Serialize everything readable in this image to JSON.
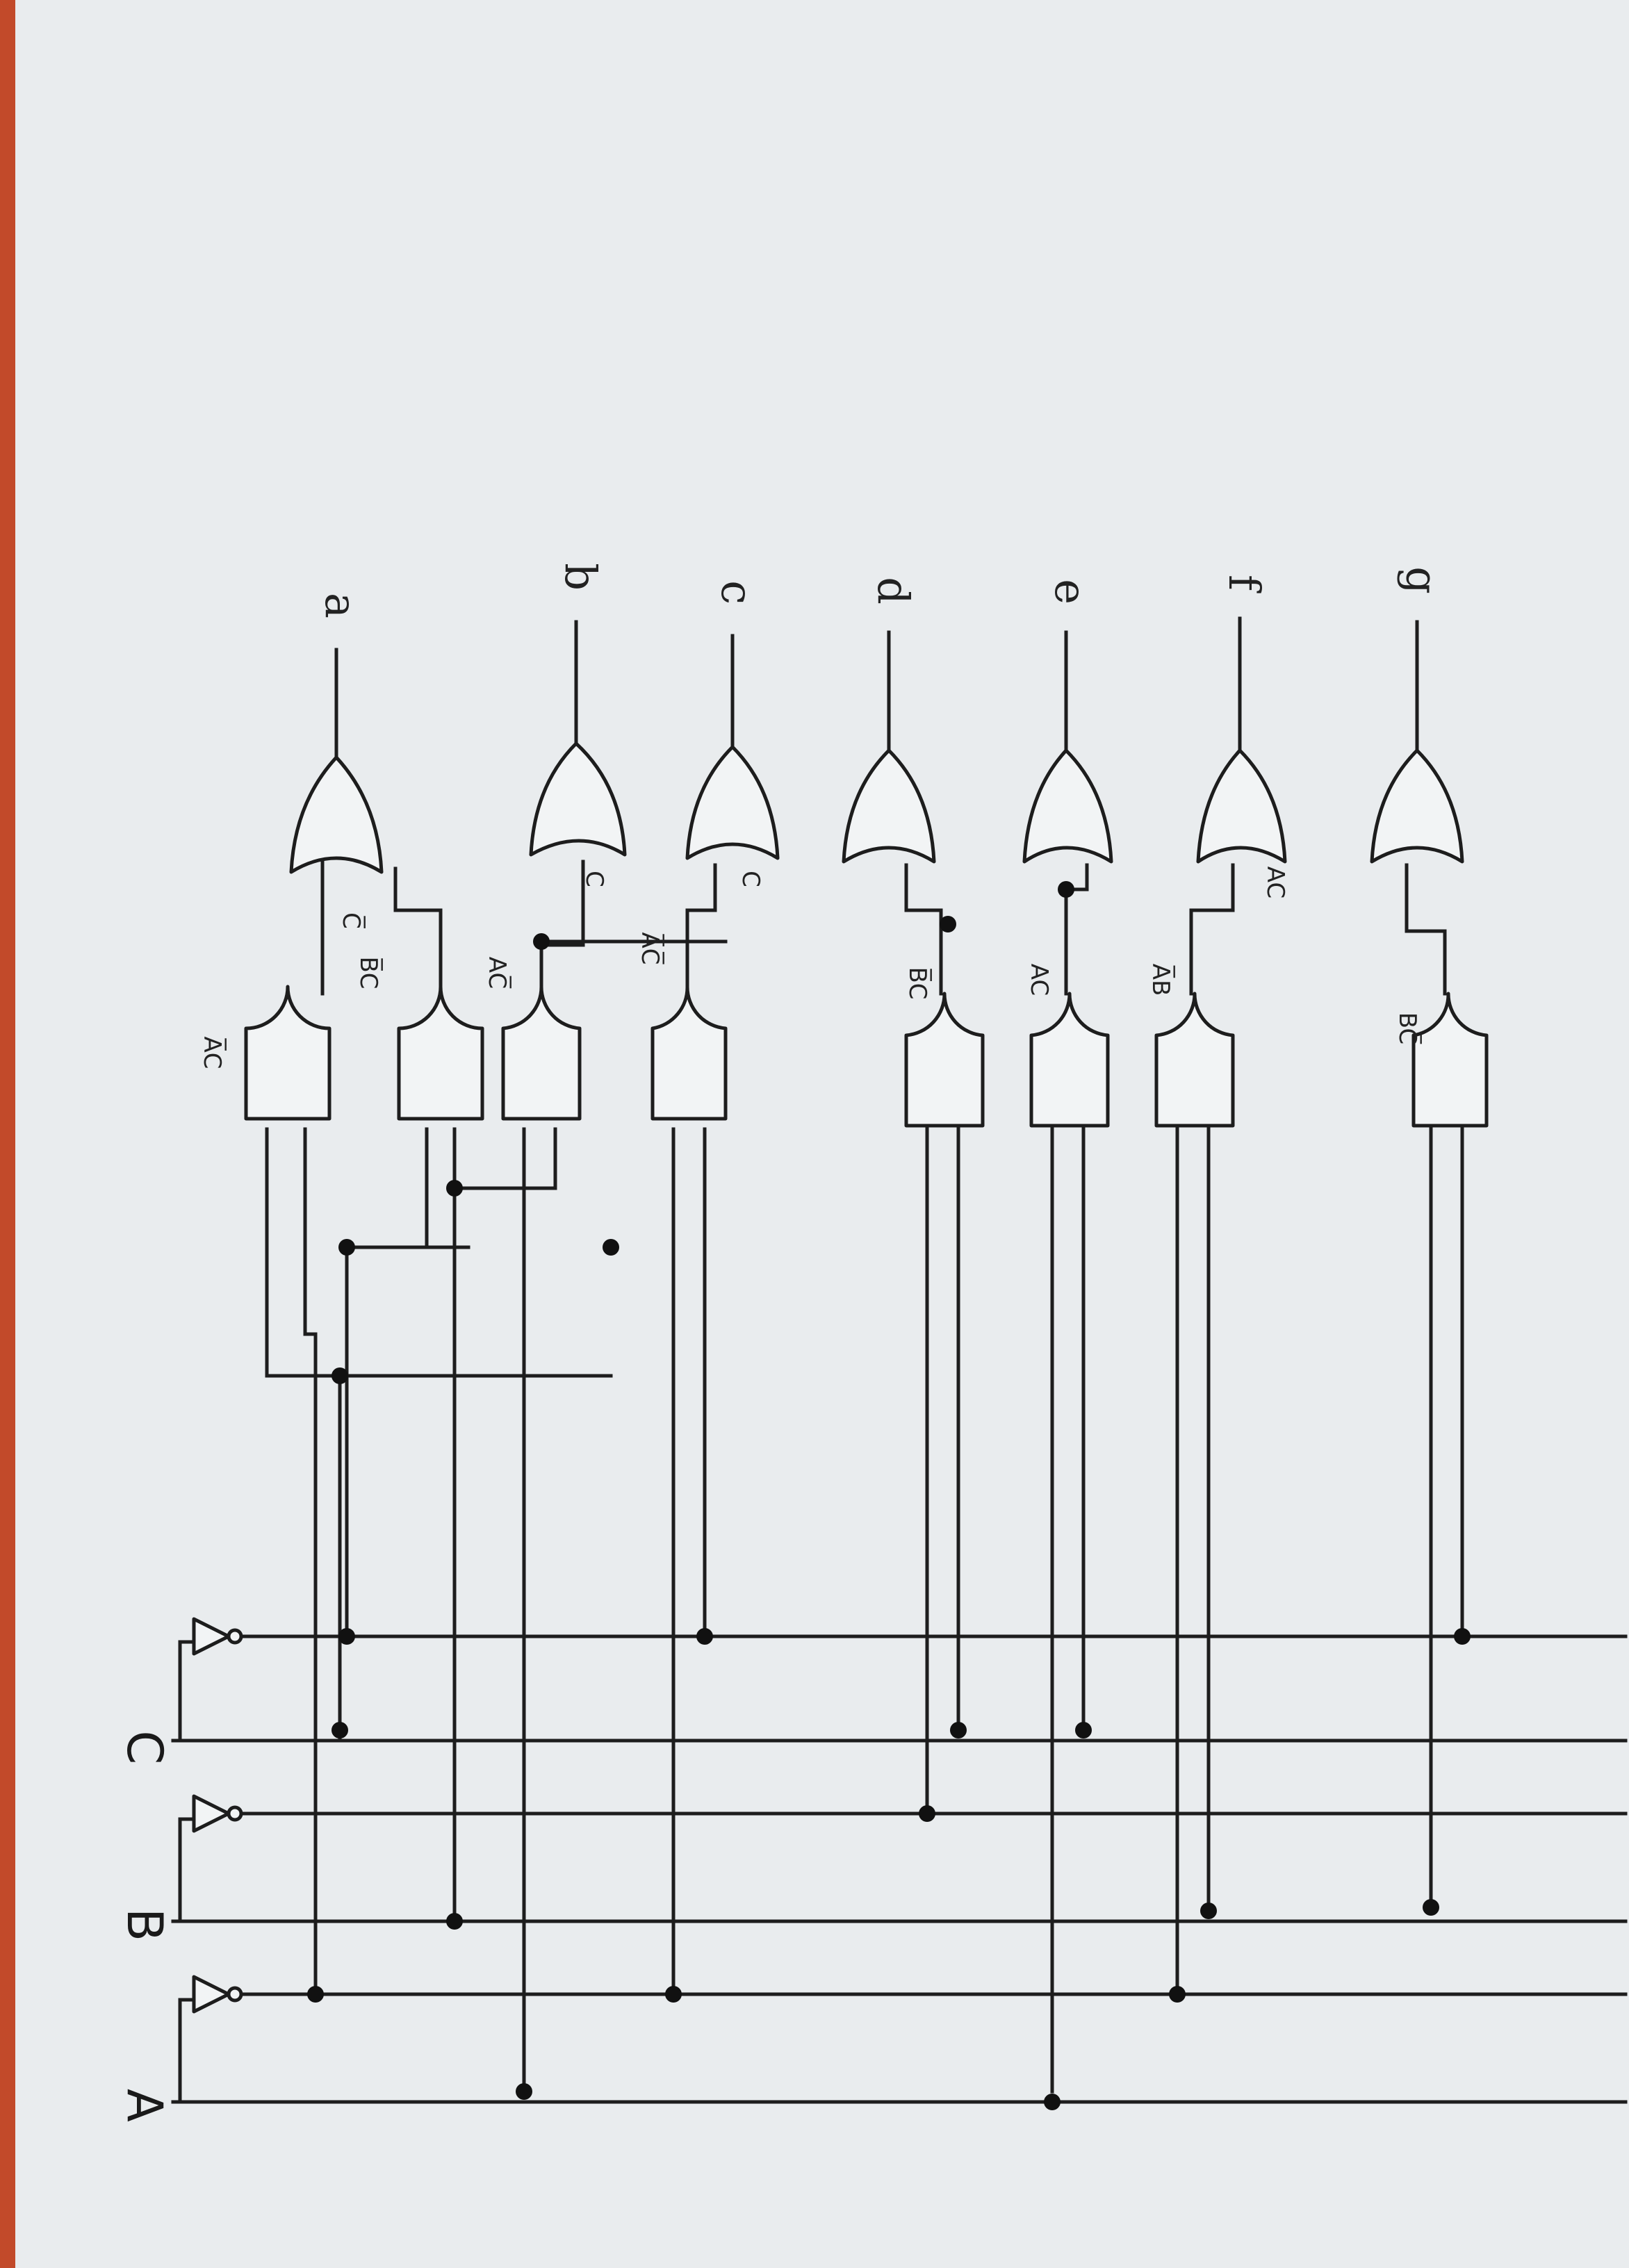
{
  "inputs": {
    "a": "A",
    "b": "B",
    "c": "C"
  },
  "outputs": [
    "a",
    "b",
    "c",
    "d",
    "e",
    "f",
    "g"
  ],
  "and_gate_labels": [
    "A̅C",
    "B̅C",
    "AC̅",
    "A̅C̅",
    "B̅C",
    "AC",
    "A̅B",
    "BC̅"
  ],
  "or_input_labels": [
    "C̅",
    "C",
    "C",
    "AC"
  ]
}
